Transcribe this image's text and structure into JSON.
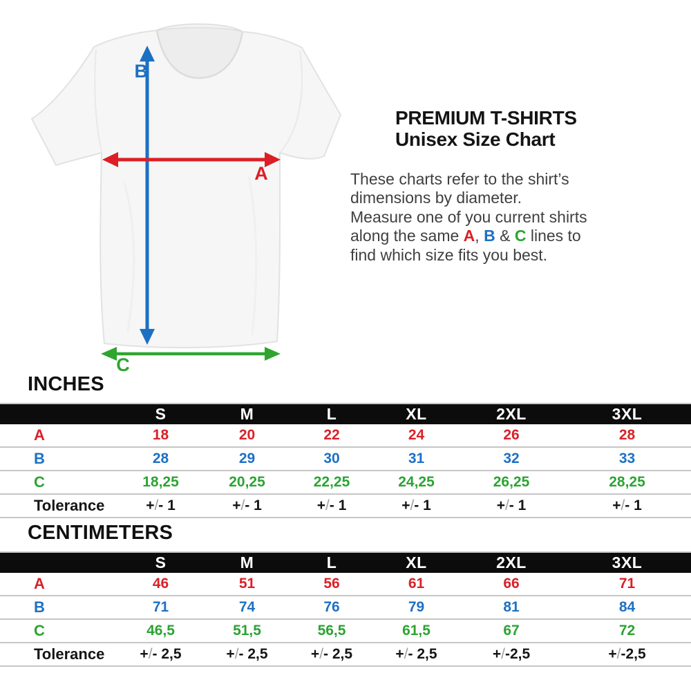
{
  "header": {
    "title_line1": "PREMIUM T-SHIRTS",
    "title_line2": "Unisex Size Chart"
  },
  "description": {
    "line1": "These charts refer to the shirt’s",
    "line2": "dimensions by diameter.",
    "line3": "Measure one of you current shirts",
    "line4_pre": "along the same ",
    "letter_a": "A",
    "line4_mid1": ", ",
    "letter_b": "B",
    "line4_mid2": " & ",
    "letter_c": "C",
    "line4_post": " lines to",
    "line5": "find which size fits you best."
  },
  "figure": {
    "label_a": "A",
    "label_b": "B",
    "label_c": "C"
  },
  "colors": {
    "red": "#d92127",
    "blue": "#1d70c4",
    "green": "#2ca333",
    "header-bg": "#0c0c0c",
    "line": "#c6c6c6"
  },
  "tables": [
    {
      "title": "INCHES",
      "columns": [
        "",
        "S",
        "M",
        "L",
        "XL",
        "2XL",
        "3XL"
      ],
      "rows": [
        {
          "label": "A",
          "color": "red",
          "values": [
            "18",
            "20",
            "22",
            "24",
            "26",
            "28"
          ]
        },
        {
          "label": "B",
          "color": "blue",
          "values": [
            "28",
            "29",
            "30",
            "31",
            "32",
            "33"
          ]
        },
        {
          "label": "C",
          "color": "green",
          "values": [
            "18,25",
            "20,25",
            "22,25",
            "24,25",
            "26,25",
            "28,25"
          ]
        },
        {
          "label": "Tolerance",
          "color": "black",
          "values": [
            "+/- 1",
            "+/- 1",
            "+/- 1",
            "+/- 1",
            "+/- 1",
            "+/- 1"
          ]
        }
      ]
    },
    {
      "title": "CENTIMETERS",
      "columns": [
        "",
        "S",
        "M",
        "L",
        "XL",
        "2XL",
        "3XL"
      ],
      "rows": [
        {
          "label": "A",
          "color": "red",
          "values": [
            "46",
            "51",
            "56",
            "61",
            "66",
            "71"
          ]
        },
        {
          "label": "B",
          "color": "blue",
          "values": [
            "71",
            "74",
            "76",
            "79",
            "81",
            "84"
          ]
        },
        {
          "label": "C",
          "color": "green",
          "values": [
            "46,5",
            "51,5",
            "56,5",
            "61,5",
            "67",
            "72"
          ]
        },
        {
          "label": "Tolerance",
          "color": "black",
          "values": [
            "+/- 2,5",
            "+/- 2,5",
            "+/- 2,5",
            "+/- 2,5",
            "+/-2,5",
            "+/-2,5"
          ]
        }
      ]
    }
  ]
}
